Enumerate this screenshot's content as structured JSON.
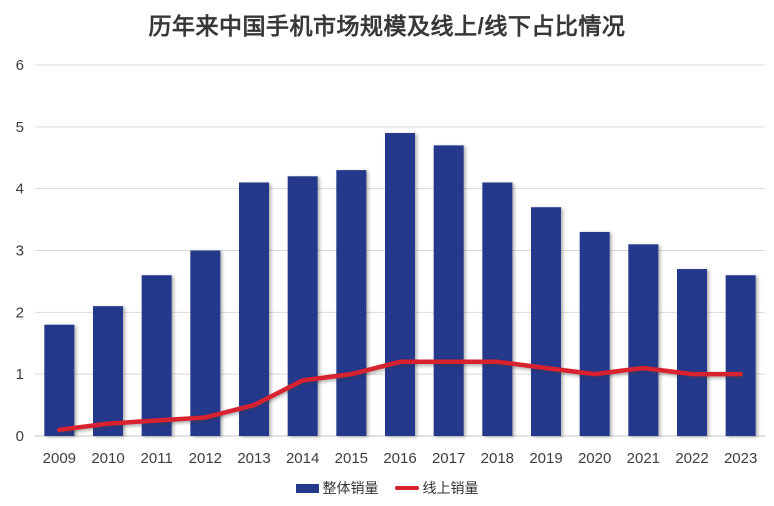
{
  "title": "历年来中国手机市场规模及线上/线下占比情况",
  "colors": {
    "bar": "#24388C",
    "line": "#D8222F",
    "grid": "#D9D9D9",
    "baseline": "#C6C6C6",
    "tick_text": "#3D3D3D",
    "title_text": "#383838",
    "background": "#FFFFFF"
  },
  "legend": {
    "items": [
      {
        "label": "整体销量",
        "swatch": "bar"
      },
      {
        "label": "线上销量",
        "swatch": "line"
      }
    ]
  },
  "chart_data": {
    "type": "bar",
    "subtype": "combo-bar-line",
    "title": "历年来中国手机市场规模及线上/线下占比情况",
    "categories": [
      "2009",
      "2010",
      "2011",
      "2012",
      "2013",
      "2014",
      "2015",
      "2016",
      "2017",
      "2018",
      "2019",
      "2020",
      "2021",
      "2022",
      "2023"
    ],
    "series": [
      {
        "name": "整体销量",
        "type": "bar",
        "color": "#24388C",
        "values": [
          1.8,
          2.1,
          2.6,
          3.0,
          4.1,
          4.2,
          4.3,
          4.9,
          4.7,
          4.1,
          3.7,
          3.3,
          3.1,
          2.7,
          2.6
        ]
      },
      {
        "name": "线上销量",
        "type": "line",
        "color": "#D8222F",
        "values": [
          0.1,
          0.2,
          0.25,
          0.3,
          0.5,
          0.9,
          1.0,
          1.2,
          1.2,
          1.2,
          1.1,
          1.0,
          1.1,
          1.0,
          1.0
        ]
      }
    ],
    "xlabel": "",
    "ylabel": "",
    "ylim": [
      0,
      6
    ],
    "yticks": [
      0,
      1,
      2,
      3,
      4,
      5,
      6
    ],
    "grid": true,
    "legend_position": "bottom"
  }
}
